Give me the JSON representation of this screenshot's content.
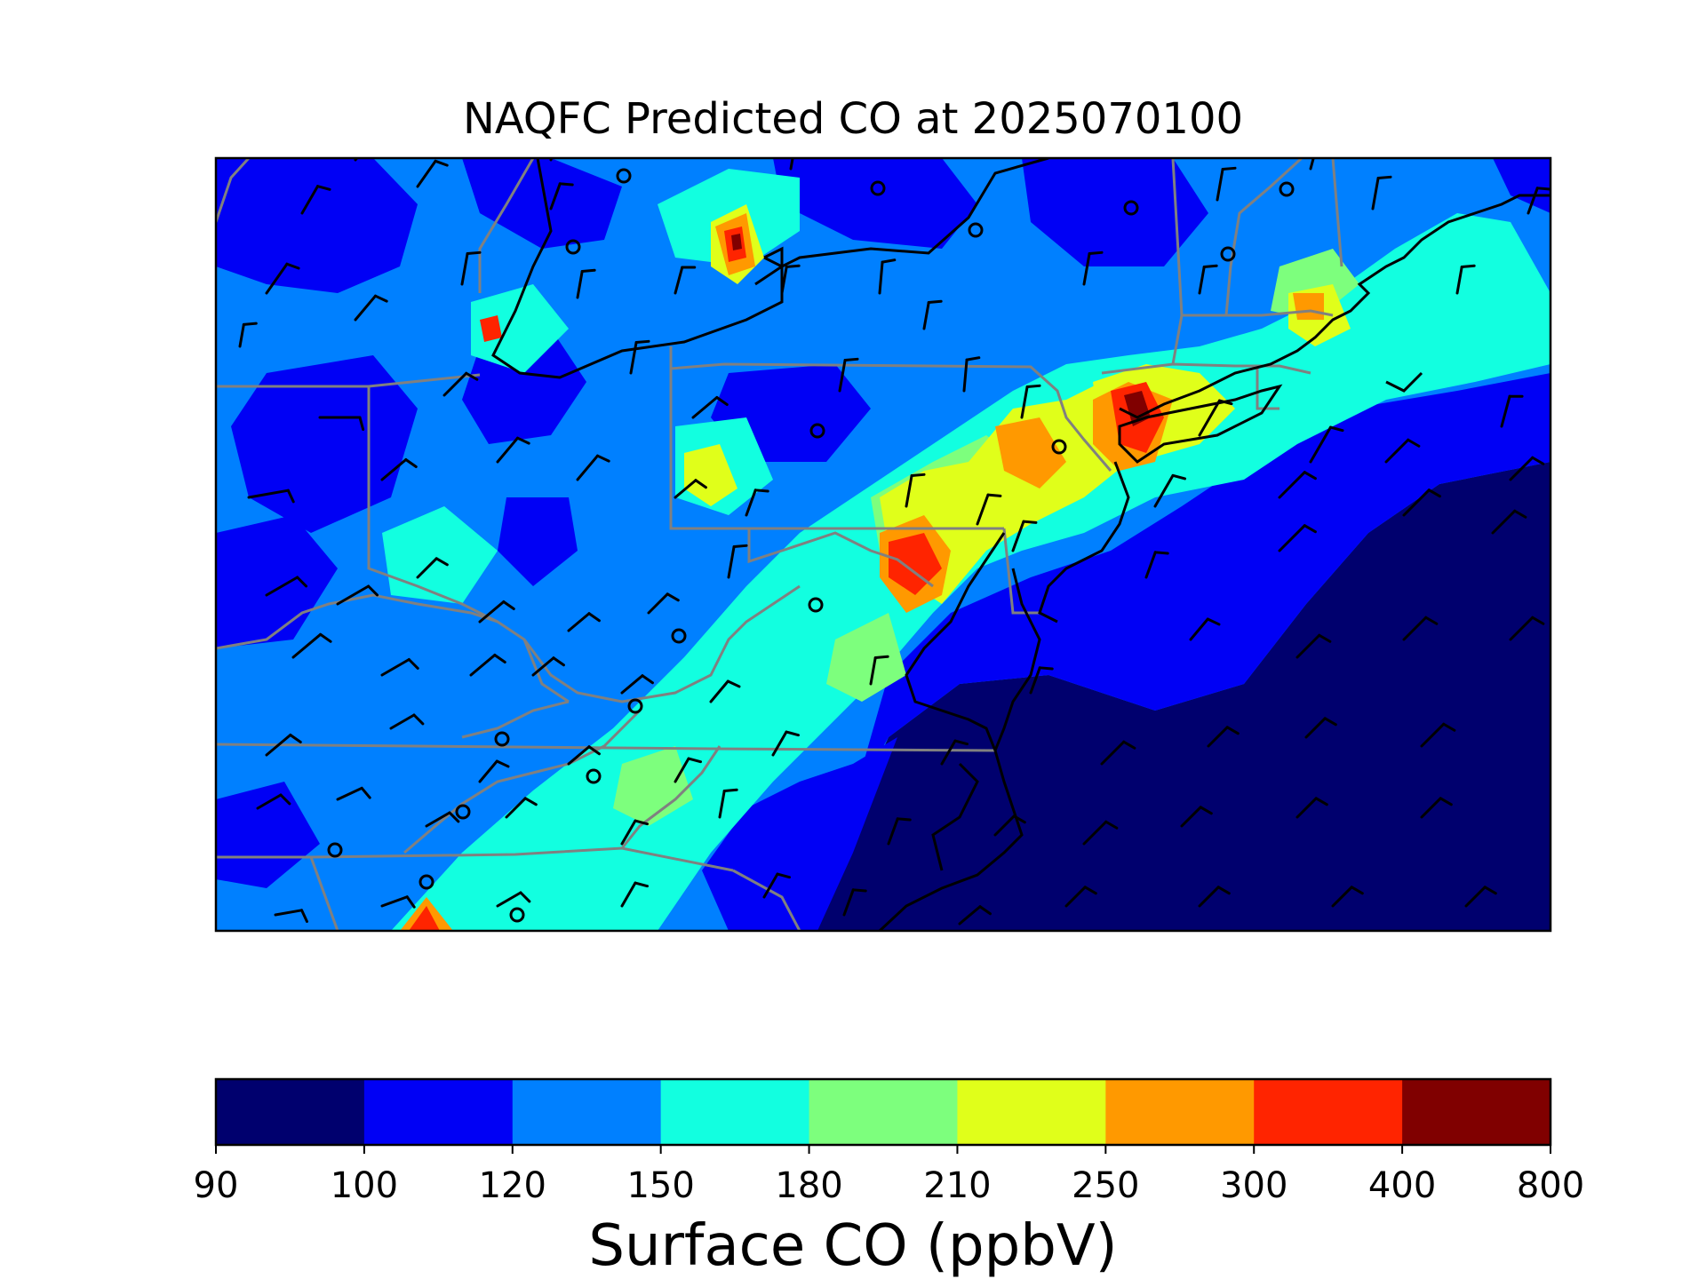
{
  "figure": {
    "title": "NAQFC Predicted CO at 2025070100"
  },
  "colorbar": {
    "label": "Surface CO (ppbV)",
    "boundaries": [
      "90",
      "100",
      "120",
      "150",
      "180",
      "210",
      "250",
      "300",
      "400",
      "800"
    ],
    "colors": [
      "#00006e",
      "#0000f5",
      "#0080ff",
      "#12ffe0",
      "#7dff7d",
      "#e0ff1a",
      "#ff9900",
      "#ff2400",
      "#800000"
    ]
  },
  "map": {
    "background_color": "#0080ff",
    "coastline_color": "#000000",
    "state_border_color": "#808080",
    "station_marker": "open-circle",
    "wind_barb_color": "#000000"
  }
}
